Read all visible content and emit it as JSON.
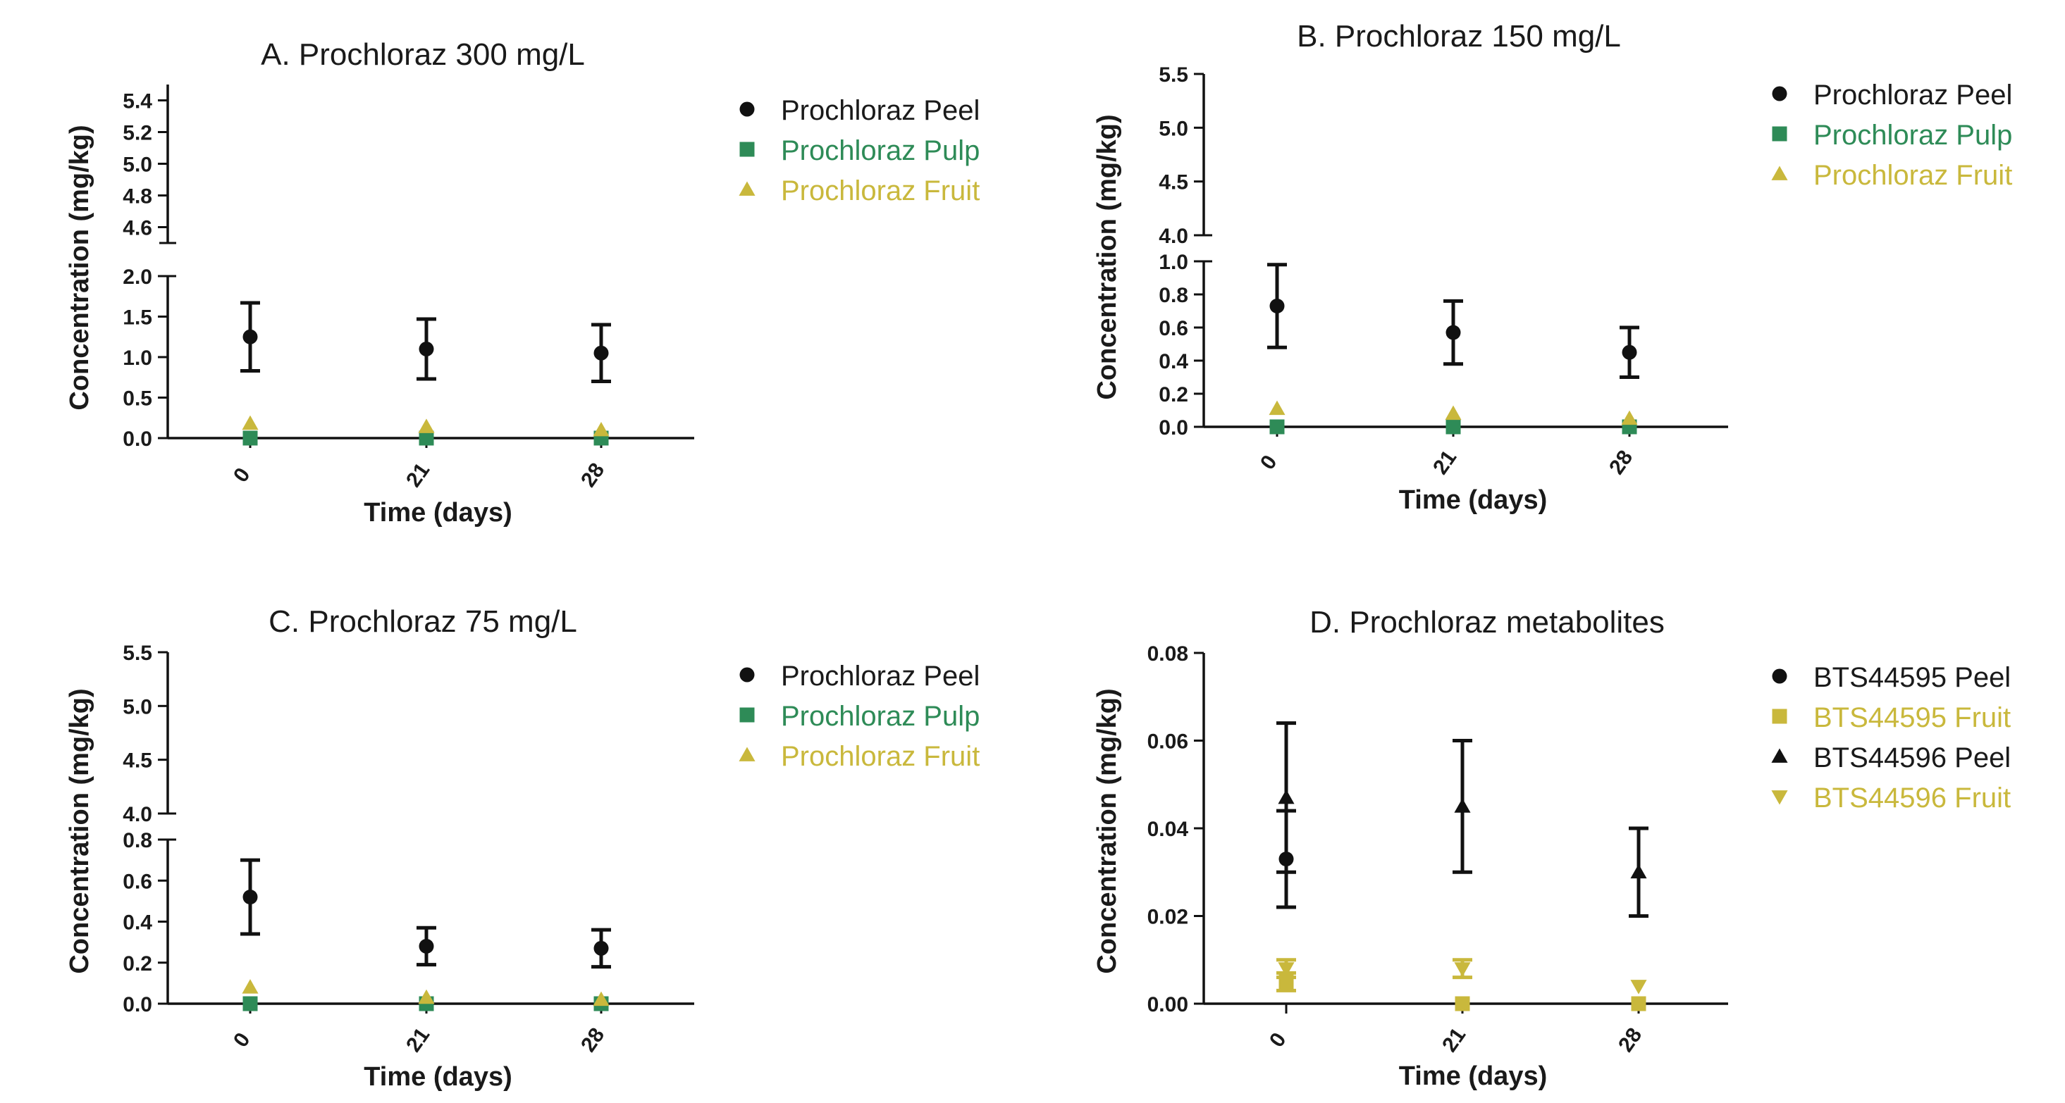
{
  "colors": {
    "peel": "#111111",
    "pulp": "#2e8b57",
    "fruit": "#c9b83c",
    "axis": "#111111"
  },
  "chart_data": [
    {
      "panel": "A",
      "type": "scatter",
      "title": "A. Prochloraz 300 mg/L",
      "xlabel": "Time (days)",
      "ylabel": "Concentration (mg/kg)",
      "categories": [
        "0",
        "21",
        "28"
      ],
      "y_lower": {
        "ylim": [
          0,
          2.0
        ],
        "ticks": [
          "0.0",
          "0.5",
          "1.0",
          "1.5",
          "2.0"
        ]
      },
      "y_upper": {
        "ylim": [
          4.5,
          5.5
        ],
        "ticks": [
          "4.6",
          "4.8",
          "5.0",
          "5.2",
          "5.4"
        ]
      },
      "series": [
        {
          "name": "Prochloraz Peel",
          "marker": "circle",
          "color": "#111111",
          "values": [
            1.25,
            1.1,
            1.05
          ],
          "err": [
            0.42,
            0.37,
            0.35
          ]
        },
        {
          "name": "Prochloraz Pulp",
          "marker": "square",
          "color": "#2e8b57",
          "values": [
            0.0,
            0.0,
            0.0
          ],
          "err": [
            0,
            0,
            0
          ]
        },
        {
          "name": "Prochloraz Fruit",
          "marker": "triangle",
          "color": "#c9b83c",
          "values": [
            0.18,
            0.14,
            0.1
          ],
          "err": [
            0,
            0,
            0
          ]
        }
      ]
    },
    {
      "panel": "B",
      "type": "scatter",
      "title": "B. Prochloraz 150 mg/L",
      "xlabel": "Time (days)",
      "ylabel": "Concentration (mg/kg)",
      "categories": [
        "0",
        "21",
        "28"
      ],
      "y_lower": {
        "ylim": [
          0,
          1.0
        ],
        "ticks": [
          "0.0",
          "0.2",
          "0.4",
          "0.6",
          "0.8",
          "1.0"
        ]
      },
      "y_upper": {
        "ylim": [
          4.0,
          5.5
        ],
        "ticks": [
          "4.0",
          "4.5",
          "5.0",
          "5.5"
        ]
      },
      "series": [
        {
          "name": "Prochloraz Peel",
          "marker": "circle",
          "color": "#111111",
          "values": [
            0.73,
            0.57,
            0.45
          ],
          "err": [
            0.25,
            0.19,
            0.15
          ]
        },
        {
          "name": "Prochloraz Pulp",
          "marker": "square",
          "color": "#2e8b57",
          "values": [
            0.0,
            0.0,
            0.0
          ],
          "err": [
            0,
            0,
            0
          ]
        },
        {
          "name": "Prochloraz Fruit",
          "marker": "triangle",
          "color": "#c9b83c",
          "values": [
            0.11,
            0.08,
            0.05
          ],
          "err": [
            0,
            0,
            0
          ]
        }
      ]
    },
    {
      "panel": "C",
      "type": "scatter",
      "title": "C. Prochloraz 75 mg/L",
      "xlabel": "Time (days)",
      "ylabel": "Concentration (mg/kg)",
      "categories": [
        "0",
        "21",
        "28"
      ],
      "y_lower": {
        "ylim": [
          0,
          0.8
        ],
        "ticks": [
          "0.0",
          "0.2",
          "0.4",
          "0.6",
          "0.8"
        ]
      },
      "y_upper": {
        "ylim": [
          4.0,
          5.5
        ],
        "ticks": [
          "4.0",
          "4.5",
          "5.0",
          "5.5"
        ]
      },
      "series": [
        {
          "name": "Prochloraz Peel",
          "marker": "circle",
          "color": "#111111",
          "values": [
            0.52,
            0.28,
            0.27
          ],
          "err": [
            0.18,
            0.09,
            0.09
          ]
        },
        {
          "name": "Prochloraz Pulp",
          "marker": "square",
          "color": "#2e8b57",
          "values": [
            0.0,
            0.0,
            0.0
          ],
          "err": [
            0,
            0,
            0
          ]
        },
        {
          "name": "Prochloraz Fruit",
          "marker": "triangle",
          "color": "#c9b83c",
          "values": [
            0.08,
            0.03,
            0.02
          ],
          "err": [
            0,
            0,
            0
          ]
        }
      ]
    },
    {
      "panel": "D",
      "type": "scatter",
      "title": "D. Prochloraz metabolites",
      "xlabel": "Time (days)",
      "ylabel": "Concentration (mg/kg)",
      "categories": [
        "0",
        "21",
        "28"
      ],
      "ylim": [
        0,
        0.08
      ],
      "yticks": [
        "0.00",
        "0.02",
        "0.04",
        "0.06",
        "0.08"
      ],
      "series": [
        {
          "name": "BTS44595 Peel",
          "marker": "circle",
          "color": "#111111",
          "values": [
            0.033,
            null,
            null
          ],
          "err": [
            0.011,
            0,
            0
          ]
        },
        {
          "name": "BTS44595 Fruit",
          "marker": "square",
          "color": "#c9b83c",
          "values": [
            0.005,
            0.0,
            0.0
          ],
          "err": [
            0.002,
            0,
            0
          ]
        },
        {
          "name": "BTS44596 Peel",
          "marker": "triangle",
          "color": "#111111",
          "values": [
            0.047,
            0.045,
            0.03
          ],
          "err": [
            0.017,
            0.015,
            0.01
          ]
        },
        {
          "name": "BTS44596 Fruit",
          "marker": "triangle-down",
          "color": "#c9b83c",
          "values": [
            0.008,
            0.008,
            0.004
          ],
          "err": [
            0.002,
            0.002,
            0
          ]
        }
      ]
    }
  ]
}
